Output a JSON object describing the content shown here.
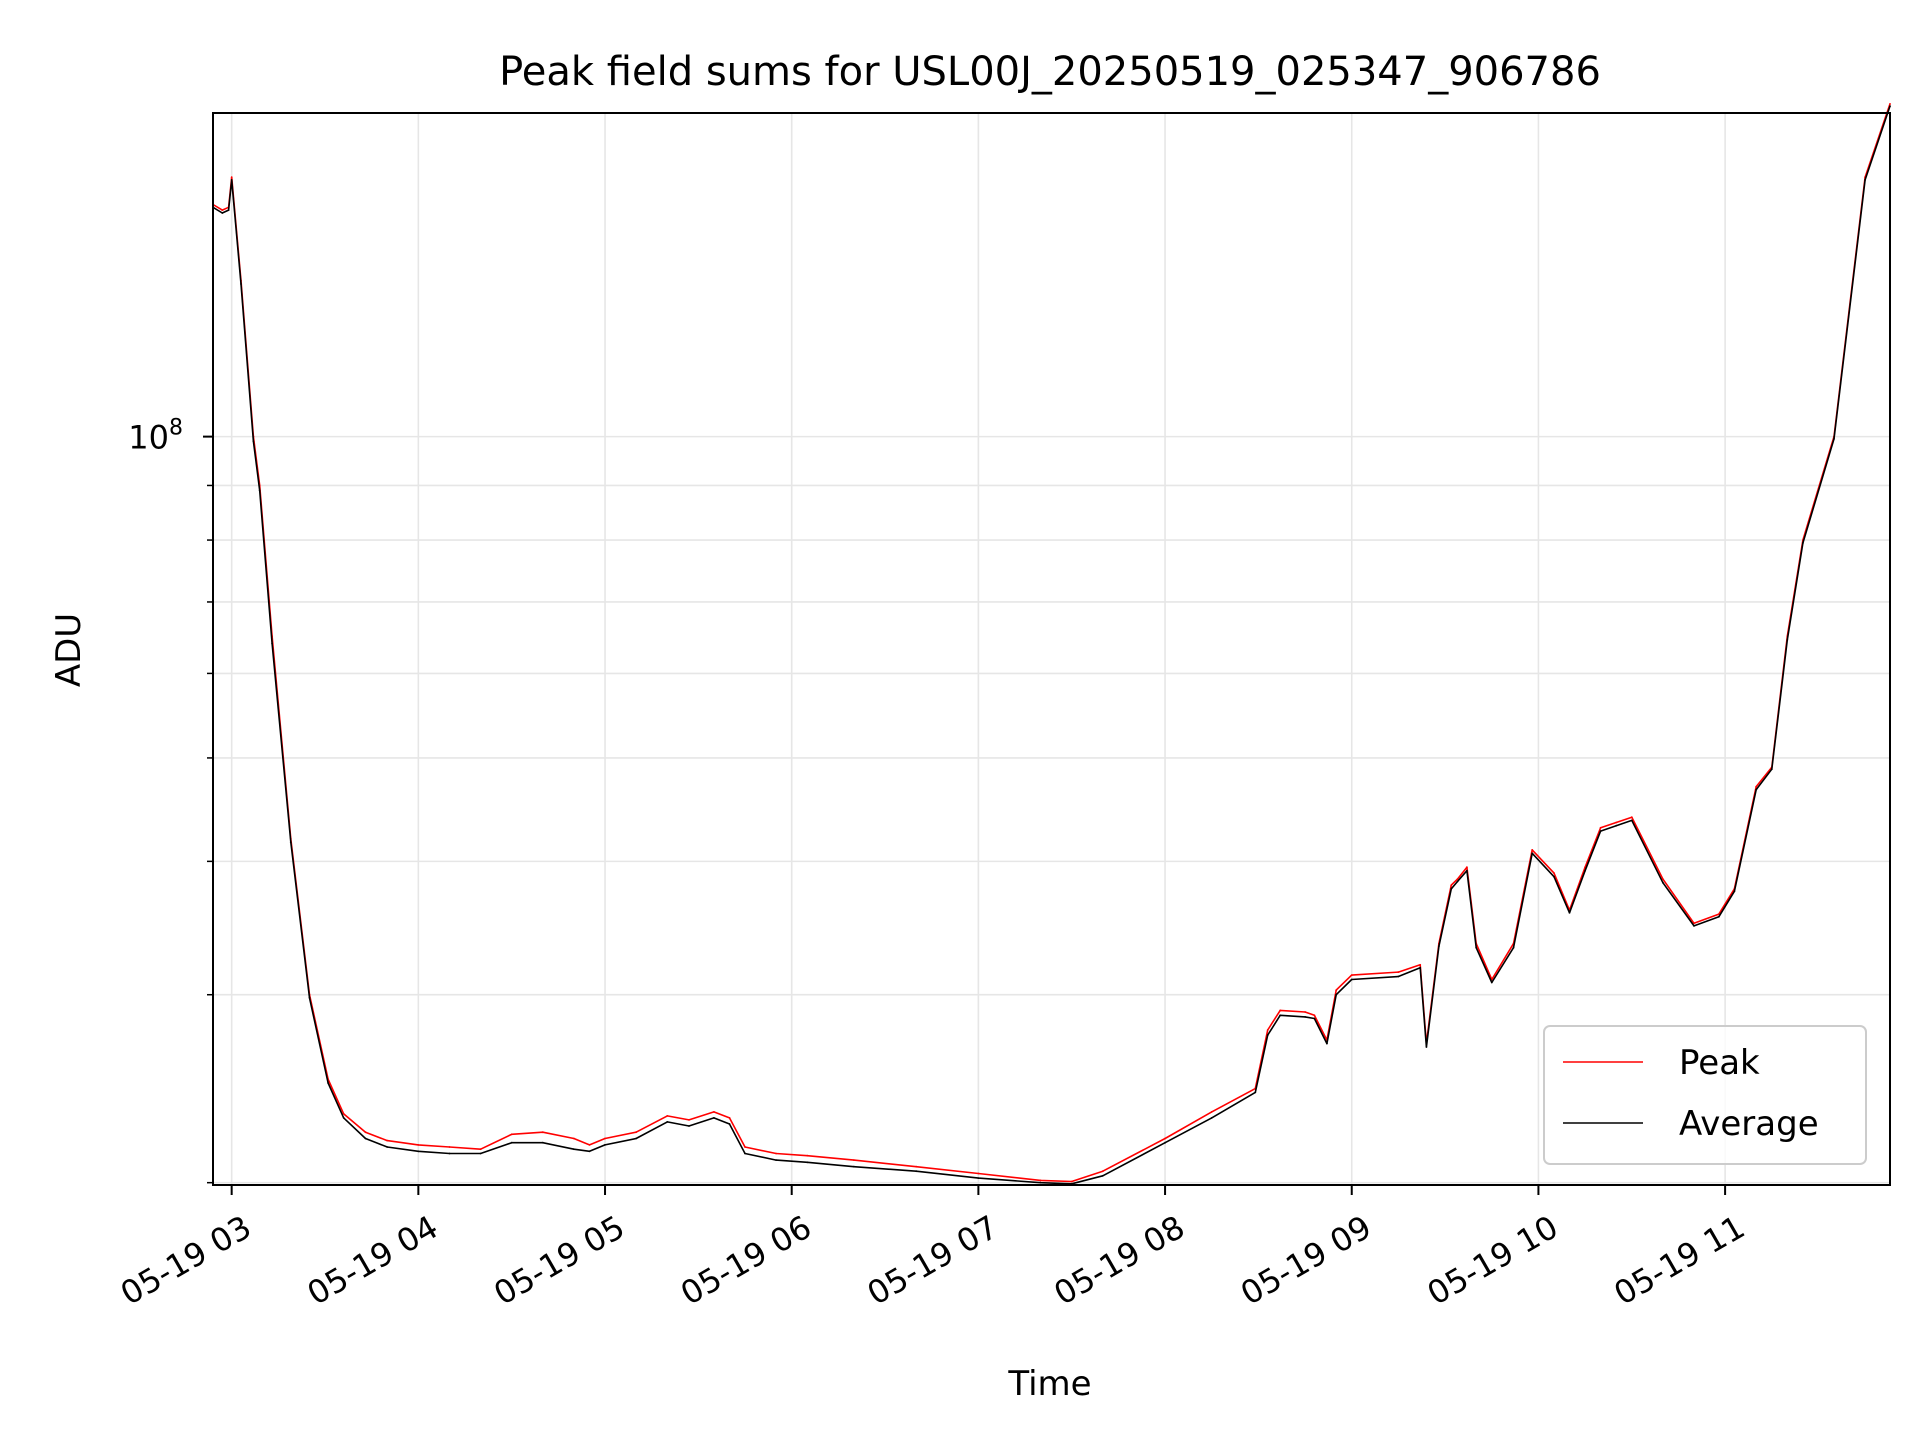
{
  "chart_data": {
    "type": "line",
    "title": "Peak field sums for USL00J_20250519_025347_906786",
    "xlabel": "Time",
    "ylabel": "ADU",
    "y_scale": "log",
    "ylim": [
      19900000,
      201000000
    ],
    "xlim": [
      "05-19 02:54",
      "05-19 11:53"
    ],
    "grid": true,
    "legend_position": "lower right",
    "x_ticks": [
      "05-19 03",
      "05-19 04",
      "05-19 05",
      "05-19 06",
      "05-19 07",
      "05-19 08",
      "05-19 09",
      "05-19 10",
      "05-19 11"
    ],
    "y_ticks": [
      {
        "base": "10",
        "exponent": "8",
        "value": 100000000
      }
    ],
    "colors": {
      "Peak": "#ff0000",
      "Average": "#000000",
      "grid": "#e6e6e6"
    },
    "x": [
      "05-19 02:54",
      "05-19 02:57",
      "05-19 02:59",
      "05-19 03:00",
      "05-19 03:03",
      "05-19 03:07",
      "05-19 03:09",
      "05-19 03:13",
      "05-19 03:19",
      "05-19 03:25",
      "05-19 03:31",
      "05-19 03:36",
      "05-19 03:43",
      "05-19 03:50",
      "05-19 04:00",
      "05-19 04:10",
      "05-19 04:20",
      "05-19 04:30",
      "05-19 04:40",
      "05-19 04:50",
      "05-19 04:55",
      "05-19 05:00",
      "05-19 05:10",
      "05-19 05:20",
      "05-19 05:27",
      "05-19 05:35",
      "05-19 05:40",
      "05-19 05:45",
      "05-19 05:55",
      "05-19 06:05",
      "05-19 06:20",
      "05-19 06:40",
      "05-19 07:00",
      "05-19 07:20",
      "05-19 07:30",
      "05-19 07:40",
      "05-19 08:00",
      "05-19 08:15",
      "05-19 08:29",
      "05-19 08:33",
      "05-19 08:37",
      "05-19 08:45",
      "05-19 08:48",
      "05-19 08:52",
      "05-19 08:55",
      "05-19 09:00",
      "05-19 09:15",
      "05-19 09:22",
      "05-19 09:24",
      "05-19 09:28",
      "05-19 09:32",
      "05-19 09:34",
      "05-19 09:37",
      "05-19 09:40",
      "05-19 09:45",
      "05-19 09:52",
      "05-19 09:58",
      "05-19 10:05",
      "05-19 10:10",
      "05-19 10:15",
      "05-19 10:20",
      "05-19 10:25",
      "05-19 10:30",
      "05-19 10:40",
      "05-19 10:50",
      "05-19 10:58",
      "05-19 11:03",
      "05-19 11:10",
      "05-19 11:15",
      "05-19 11:20",
      "05-19 11:25",
      "05-19 11:35",
      "05-19 11:45",
      "05-19 11:53"
    ],
    "series": [
      {
        "name": "Peak",
        "values": [
          165000000,
          163000000,
          164000000,
          175000000,
          140000000,
          100000000,
          90000000,
          65000000,
          42000000,
          30000000,
          25000000,
          23200000,
          22300000,
          21900000,
          21700000,
          21600000,
          21500000,
          22200000,
          22300000,
          22000000,
          21700000,
          22000000,
          22300000,
          23100000,
          22900000,
          23300000,
          23000000,
          21600000,
          21300000,
          21200000,
          21000000,
          20700000,
          20400000,
          20100000,
          20050000,
          20500000,
          22000000,
          23300000,
          24500000,
          27800000,
          29000000,
          28900000,
          28700000,
          27200000,
          30300000,
          31300000,
          31500000,
          32000000,
          27000000,
          33500000,
          38000000,
          38500000,
          39500000,
          33500000,
          31000000,
          33500000,
          41000000,
          39000000,
          36000000,
          39500000,
          43000000,
          43500000,
          44000000,
          38500000,
          35000000,
          35700000,
          37700000,
          47000000,
          49000000,
          65000000,
          80000000,
          100000000,
          175000000,
          205000000
        ]
      },
      {
        "name": "Average",
        "values": [
          164000000,
          162000000,
          163000000,
          174000000,
          139000000,
          99000000,
          89000000,
          64000000,
          41700000,
          29800000,
          24800000,
          23000000,
          22000000,
          21600000,
          21400000,
          21300000,
          21300000,
          21800000,
          21800000,
          21500000,
          21400000,
          21700000,
          22000000,
          22800000,
          22600000,
          23000000,
          22700000,
          21300000,
          21000000,
          20900000,
          20700000,
          20500000,
          20200000,
          20000000,
          19950000,
          20300000,
          21800000,
          23000000,
          24300000,
          27500000,
          28700000,
          28600000,
          28500000,
          27000000,
          30000000,
          31000000,
          31200000,
          31800000,
          26800000,
          33300000,
          37700000,
          38300000,
          39200000,
          33200000,
          30800000,
          33200000,
          40700000,
          38700000,
          35800000,
          39200000,
          42700000,
          43200000,
          43700000,
          38200000,
          34800000,
          35500000,
          37500000,
          46700000,
          48800000,
          64500000,
          79500000,
          99500000,
          174000000,
          204000000
        ]
      }
    ]
  }
}
